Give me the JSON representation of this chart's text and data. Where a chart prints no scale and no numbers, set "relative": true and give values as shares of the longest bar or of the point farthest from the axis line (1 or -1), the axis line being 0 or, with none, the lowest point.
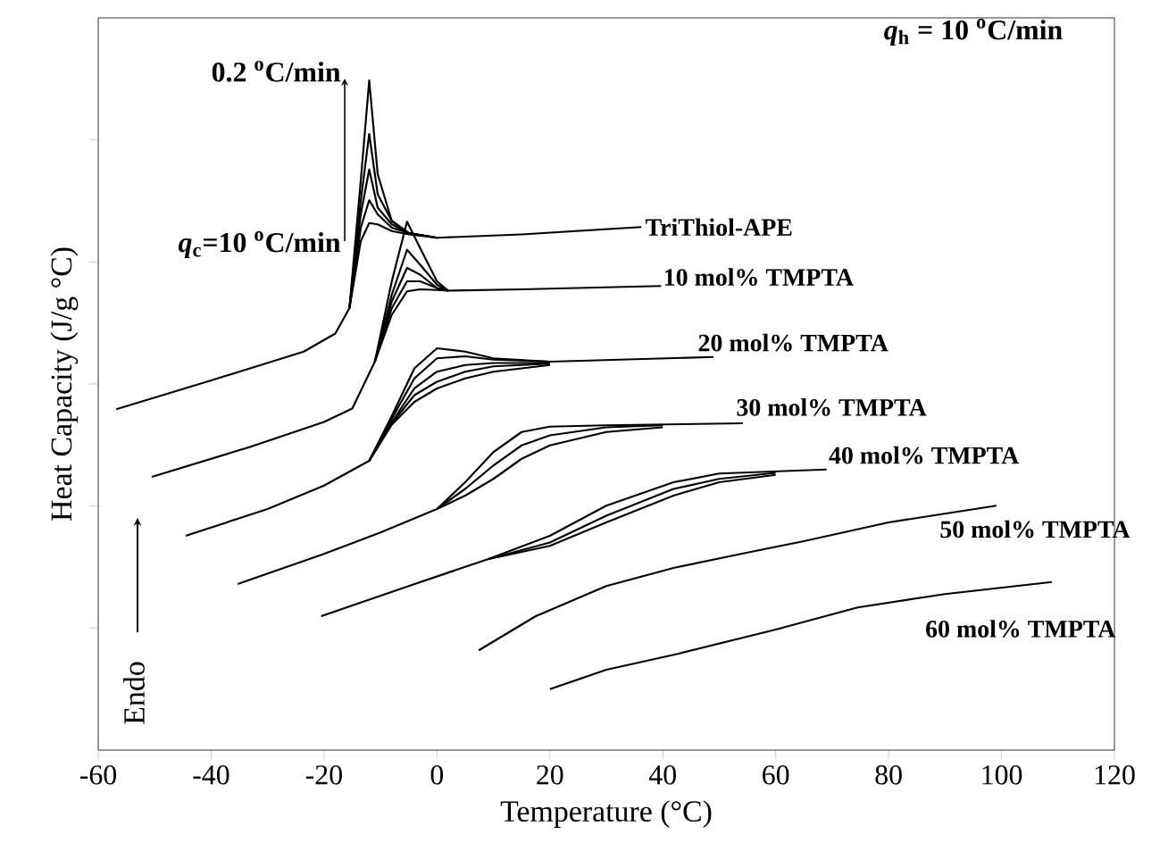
{
  "chart_data": {
    "type": "line",
    "relative": true,
    "xlabel": "Temperature (°C)",
    "ylabel": "Heat Capacity (J/g °C)",
    "xlim": [
      -60,
      120
    ],
    "xticks": [
      -60,
      -40,
      -20,
      0,
      20,
      40,
      60,
      80,
      100,
      120
    ],
    "annotations": [
      "0.2 $^{o}$C/min",
      "*q*$_{c}$=10 $^{o}$C/min",
      "*q*$_{h}$ = 10 $^{o}$C/min",
      "Endo"
    ],
    "series": [
      {
        "name": "TriThiol-APE",
        "color": "#000000",
        "x": [
          -56.8,
          -40,
          -23.6,
          -18,
          -15.5,
          -13.5,
          -12,
          -10.5,
          -8,
          -5,
          0,
          15,
          36.2
        ],
        "values": [
          0.509,
          0.552,
          0.595,
          0.622,
          0.66,
          0.85,
          1.0,
          0.86,
          0.79,
          0.772,
          0.765,
          0.77,
          0.781
        ]
      },
      {
        "color": "#000000",
        "x": [
          -15.5,
          -13.5,
          -12,
          -10.5,
          -8,
          -5,
          0
        ],
        "values": [
          0.66,
          0.82,
          0.92,
          0.83,
          0.79,
          0.772,
          0.765
        ]
      },
      {
        "color": "#000000",
        "x": [
          -15.5,
          -13.5,
          -12,
          -10.5,
          -8,
          -5,
          0
        ],
        "values": [
          0.66,
          0.8,
          0.867,
          0.81,
          0.785,
          0.772,
          0.765
        ]
      },
      {
        "color": "#000000",
        "x": [
          -15.5,
          -13.5,
          -12,
          -10.5,
          -8,
          -5,
          0
        ],
        "values": [
          0.66,
          0.78,
          0.821,
          0.8,
          0.78,
          0.772,
          0.765
        ]
      },
      {
        "color": "#000000",
        "x": [
          -15.5,
          -13.5,
          -12,
          -10.5,
          -8,
          -5,
          0
        ],
        "values": [
          0.66,
          0.76,
          0.787,
          0.785,
          0.775,
          0.77,
          0.765
        ]
      },
      {
        "name": "10 mol% TMPTA",
        "color": "#000000",
        "x": [
          -50.5,
          -33,
          -20,
          -15,
          -11,
          -8,
          -5.3,
          -3,
          0,
          2,
          15,
          39.7
        ],
        "values": [
          0.408,
          0.453,
          0.49,
          0.51,
          0.58,
          0.7,
          0.789,
          0.75,
          0.7,
          0.686,
          0.688,
          0.693
        ]
      },
      {
        "color": "#000000",
        "x": [
          -11,
          -8,
          -5.3,
          -3,
          0,
          2
        ],
        "values": [
          0.58,
          0.68,
          0.747,
          0.725,
          0.695,
          0.686
        ]
      },
      {
        "color": "#000000",
        "x": [
          -11,
          -8,
          -5.3,
          -3,
          0,
          2
        ],
        "values": [
          0.58,
          0.67,
          0.72,
          0.71,
          0.69,
          0.686
        ]
      },
      {
        "color": "#000000",
        "x": [
          -11,
          -8,
          -5.3,
          -3,
          0,
          2
        ],
        "values": [
          0.58,
          0.66,
          0.7,
          0.7,
          0.69,
          0.686
        ]
      },
      {
        "color": "#000000",
        "x": [
          -11,
          -8,
          -5.3,
          -3,
          0,
          2
        ],
        "values": [
          0.58,
          0.65,
          0.685,
          0.688,
          0.687,
          0.686
        ]
      },
      {
        "name": "20 mol% TMPTA",
        "color": "#000000",
        "x": [
          -44.5,
          -30,
          -20,
          -12,
          -8,
          -4,
          0,
          5,
          10,
          20,
          49
        ],
        "values": [
          0.32,
          0.36,
          0.395,
          0.432,
          0.499,
          0.57,
          0.6,
          0.595,
          0.585,
          0.58,
          0.587
        ]
      },
      {
        "color": "#000000",
        "x": [
          -12,
          -8,
          -4,
          0,
          5,
          10,
          20
        ],
        "values": [
          0.432,
          0.495,
          0.555,
          0.585,
          0.588,
          0.583,
          0.58
        ]
      },
      {
        "color": "#000000",
        "x": [
          -12,
          -8,
          -4,
          0,
          5,
          10,
          20
        ],
        "values": [
          0.432,
          0.49,
          0.54,
          0.565,
          0.575,
          0.578,
          0.578
        ]
      },
      {
        "color": "#000000",
        "x": [
          -12,
          -8,
          -4,
          0,
          5,
          10,
          20
        ],
        "values": [
          0.432,
          0.488,
          0.53,
          0.55,
          0.565,
          0.573,
          0.577
        ]
      },
      {
        "color": "#000000",
        "x": [
          -12,
          -8,
          -4,
          0,
          5,
          10,
          20
        ],
        "values": [
          0.432,
          0.486,
          0.52,
          0.54,
          0.555,
          0.565,
          0.575
        ]
      },
      {
        "name": "30 mol% TMPTA",
        "color": "#000000",
        "x": [
          -35.3,
          -20,
          -10,
          0,
          5,
          10,
          15,
          20,
          30,
          54.2
        ],
        "values": [
          0.248,
          0.293,
          0.325,
          0.36,
          0.4,
          0.445,
          0.475,
          0.483,
          0.485,
          0.488
        ]
      },
      {
        "color": "#000000",
        "x": [
          0,
          5,
          10,
          15,
          20,
          30,
          40
        ],
        "values": [
          0.36,
          0.39,
          0.425,
          0.455,
          0.47,
          0.482,
          0.485
        ]
      },
      {
        "color": "#000000",
        "x": [
          0,
          5,
          10,
          15,
          20,
          30,
          40
        ],
        "values": [
          0.36,
          0.38,
          0.405,
          0.435,
          0.455,
          0.475,
          0.482
        ]
      },
      {
        "name": "40 mol% TMPTA",
        "color": "#000000",
        "x": [
          -20.5,
          -5,
          9,
          20,
          30,
          41.9,
          50,
          69
        ],
        "values": [
          0.2,
          0.245,
          0.285,
          0.32,
          0.365,
          0.4,
          0.413,
          0.419
        ]
      },
      {
        "color": "#000000",
        "x": [
          9,
          20,
          30,
          41.9,
          50,
          60
        ],
        "values": [
          0.285,
          0.31,
          0.35,
          0.39,
          0.405,
          0.414
        ]
      },
      {
        "color": "#000000",
        "x": [
          9,
          20,
          30,
          41.9,
          50,
          60
        ],
        "values": [
          0.285,
          0.305,
          0.34,
          0.38,
          0.4,
          0.411
        ]
      },
      {
        "name": "50 mol% TMPTA",
        "color": "#000000",
        "x": [
          7.4,
          17.5,
          30,
          41.9,
          55,
          65,
          80,
          99.1
        ],
        "values": [
          0.149,
          0.2,
          0.245,
          0.272,
          0.295,
          0.312,
          0.34,
          0.365
        ]
      },
      {
        "name": "60 mol% TMPTA",
        "color": "#000000",
        "x": [
          20,
          30,
          42.8,
          60,
          74.5,
          90,
          108.9
        ],
        "values": [
          0.091,
          0.12,
          0.144,
          0.18,
          0.213,
          0.233,
          0.251
        ]
      }
    ]
  }
}
